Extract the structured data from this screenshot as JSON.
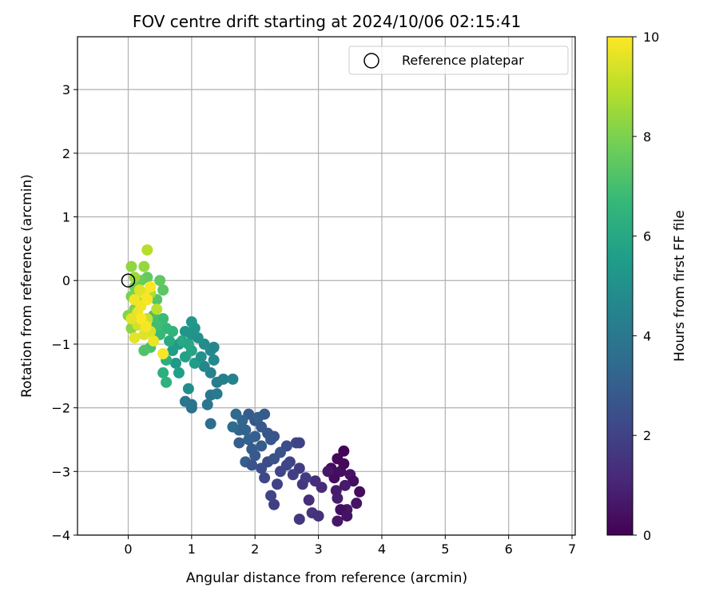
{
  "chart_data": {
    "type": "scatter",
    "title": "FOV centre drift starting at 2024/10/06 02:15:41",
    "xlabel": "Angular distance from reference (arcmin)",
    "ylabel": "Rotation from reference (arcmin)",
    "xlim": [
      -0.8,
      7.05
    ],
    "ylim": [
      -4.0,
      3.83
    ],
    "xticks": [
      "0",
      "1",
      "2",
      "3",
      "4",
      "5",
      "6",
      "7"
    ],
    "yticks": [
      "−4",
      "−3",
      "−2",
      "−1",
      "0",
      "1",
      "2",
      "3"
    ],
    "grid": true,
    "legend": {
      "position": "top-right",
      "entries": [
        "Reference platepar"
      ]
    },
    "reference_point": {
      "x": 0.0,
      "y": 0.0
    },
    "colorbar": {
      "label": "Hours from first FF file",
      "range": [
        0,
        10
      ],
      "ticks": [
        "0",
        "2",
        "4",
        "6",
        "8",
        "10"
      ],
      "colormap": "viridis"
    },
    "points": [
      {
        "x": 3.4,
        "y": -2.68,
        "t": 0.1
      },
      {
        "x": 3.3,
        "y": -2.8,
        "t": 0.2
      },
      {
        "x": 3.2,
        "y": -2.95,
        "t": 0.3
      },
      {
        "x": 3.25,
        "y": -3.1,
        "t": 0.3
      },
      {
        "x": 3.35,
        "y": -3.0,
        "t": 0.4
      },
      {
        "x": 3.4,
        "y": -2.88,
        "t": 0.2
      },
      {
        "x": 3.5,
        "y": -3.05,
        "t": 0.5
      },
      {
        "x": 3.55,
        "y": -3.15,
        "t": 0.4
      },
      {
        "x": 3.65,
        "y": -3.32,
        "t": 0.3
      },
      {
        "x": 3.6,
        "y": -3.5,
        "t": 0.5
      },
      {
        "x": 3.45,
        "y": -3.6,
        "t": 0.6
      },
      {
        "x": 3.35,
        "y": -3.6,
        "t": 0.4
      },
      {
        "x": 3.3,
        "y": -3.78,
        "t": 0.6
      },
      {
        "x": 3.45,
        "y": -3.7,
        "t": 0.5
      },
      {
        "x": 3.28,
        "y": -3.3,
        "t": 0.7
      },
      {
        "x": 3.3,
        "y": -3.42,
        "t": 0.8
      },
      {
        "x": 3.15,
        "y": -3.0,
        "t": 0.6
      },
      {
        "x": 3.42,
        "y": -3.22,
        "t": 0.7
      },
      {
        "x": 3.05,
        "y": -3.25,
        "t": 1.2
      },
      {
        "x": 2.95,
        "y": -3.15,
        "t": 1.3
      },
      {
        "x": 2.85,
        "y": -3.45,
        "t": 1.3
      },
      {
        "x": 2.9,
        "y": -3.65,
        "t": 1.5
      },
      {
        "x": 3.0,
        "y": -3.7,
        "t": 1.4
      },
      {
        "x": 2.7,
        "y": -3.75,
        "t": 1.6
      },
      {
        "x": 2.75,
        "y": -3.2,
        "t": 1.7
      },
      {
        "x": 2.8,
        "y": -3.1,
        "t": 1.8
      },
      {
        "x": 2.6,
        "y": -3.05,
        "t": 1.9
      },
      {
        "x": 2.7,
        "y": -2.95,
        "t": 1.8
      },
      {
        "x": 2.55,
        "y": -2.85,
        "t": 2.0
      },
      {
        "x": 2.65,
        "y": -2.55,
        "t": 2.1
      },
      {
        "x": 2.7,
        "y": -2.55,
        "t": 2.0
      },
      {
        "x": 2.5,
        "y": -2.9,
        "t": 2.2
      },
      {
        "x": 2.4,
        "y": -3.0,
        "t": 2.1
      },
      {
        "x": 2.35,
        "y": -3.2,
        "t": 2.0
      },
      {
        "x": 2.3,
        "y": -3.52,
        "t": 1.9
      },
      {
        "x": 2.25,
        "y": -3.38,
        "t": 2.1
      },
      {
        "x": 2.15,
        "y": -3.1,
        "t": 2.2
      },
      {
        "x": 2.1,
        "y": -2.95,
        "t": 2.4
      },
      {
        "x": 2.2,
        "y": -2.85,
        "t": 2.3
      },
      {
        "x": 2.3,
        "y": -2.8,
        "t": 2.5
      },
      {
        "x": 2.4,
        "y": -2.7,
        "t": 2.6
      },
      {
        "x": 2.5,
        "y": -2.6,
        "t": 2.4
      },
      {
        "x": 2.3,
        "y": -2.45,
        "t": 2.6
      },
      {
        "x": 2.2,
        "y": -2.4,
        "t": 2.7
      },
      {
        "x": 2.1,
        "y": -2.3,
        "t": 2.8
      },
      {
        "x": 2.0,
        "y": -2.2,
        "t": 2.7
      },
      {
        "x": 1.9,
        "y": -2.1,
        "t": 2.9
      },
      {
        "x": 2.05,
        "y": -2.15,
        "t": 3.0
      },
      {
        "x": 2.15,
        "y": -2.1,
        "t": 2.9
      },
      {
        "x": 2.0,
        "y": -2.45,
        "t": 3.0
      },
      {
        "x": 1.9,
        "y": -2.5,
        "t": 3.1
      },
      {
        "x": 1.85,
        "y": -2.35,
        "t": 3.2
      },
      {
        "x": 1.75,
        "y": -2.55,
        "t": 3.0
      },
      {
        "x": 1.8,
        "y": -2.2,
        "t": 3.3
      },
      {
        "x": 1.7,
        "y": -2.1,
        "t": 3.4
      },
      {
        "x": 1.75,
        "y": -2.35,
        "t": 3.2
      },
      {
        "x": 1.65,
        "y": -2.3,
        "t": 3.5
      },
      {
        "x": 1.95,
        "y": -2.65,
        "t": 2.9
      },
      {
        "x": 1.85,
        "y": -2.85,
        "t": 3.0
      },
      {
        "x": 2.0,
        "y": -2.75,
        "t": 2.8
      },
      {
        "x": 1.95,
        "y": -2.9,
        "t": 2.6
      },
      {
        "x": 2.1,
        "y": -2.6,
        "t": 2.9
      },
      {
        "x": 2.25,
        "y": -2.5,
        "t": 2.7
      },
      {
        "x": 1.3,
        "y": -2.25,
        "t": 3.6
      },
      {
        "x": 1.0,
        "y": -2.0,
        "t": 3.7
      },
      {
        "x": 1.0,
        "y": -1.95,
        "t": 3.8
      },
      {
        "x": 0.9,
        "y": -1.9,
        "t": 3.9
      },
      {
        "x": 1.25,
        "y": -1.95,
        "t": 3.9
      },
      {
        "x": 1.3,
        "y": -1.8,
        "t": 4.0
      },
      {
        "x": 1.4,
        "y": -1.78,
        "t": 4.1
      },
      {
        "x": 1.4,
        "y": -1.6,
        "t": 4.2
      },
      {
        "x": 1.5,
        "y": -1.55,
        "t": 4.3
      },
      {
        "x": 1.65,
        "y": -1.55,
        "t": 4.4
      },
      {
        "x": 1.3,
        "y": -1.45,
        "t": 4.5
      },
      {
        "x": 1.2,
        "y": -1.35,
        "t": 4.6
      },
      {
        "x": 1.35,
        "y": -1.25,
        "t": 4.7
      },
      {
        "x": 1.3,
        "y": -1.1,
        "t": 4.8
      },
      {
        "x": 1.35,
        "y": -1.05,
        "t": 4.6
      },
      {
        "x": 1.2,
        "y": -1.0,
        "t": 4.9
      },
      {
        "x": 1.1,
        "y": -0.9,
        "t": 5.0
      },
      {
        "x": 1.0,
        "y": -0.85,
        "t": 5.1
      },
      {
        "x": 1.05,
        "y": -0.75,
        "t": 5.2
      },
      {
        "x": 1.0,
        "y": -0.65,
        "t": 5.3
      },
      {
        "x": 0.9,
        "y": -0.8,
        "t": 5.2
      },
      {
        "x": 0.8,
        "y": -1.0,
        "t": 5.4
      },
      {
        "x": 0.7,
        "y": -1.1,
        "t": 5.5
      },
      {
        "x": 0.75,
        "y": -1.3,
        "t": 5.3
      },
      {
        "x": 0.8,
        "y": -1.45,
        "t": 5.6
      },
      {
        "x": 0.95,
        "y": -1.7,
        "t": 4.9
      },
      {
        "x": 0.9,
        "y": -1.2,
        "t": 5.7
      },
      {
        "x": 1.05,
        "y": -1.3,
        "t": 5.5
      },
      {
        "x": 1.15,
        "y": -1.2,
        "t": 5.0
      },
      {
        "x": 1.0,
        "y": -1.1,
        "t": 5.8
      },
      {
        "x": 0.85,
        "y": -0.95,
        "t": 6.0
      },
      {
        "x": 0.95,
        "y": -1.0,
        "t": 5.9
      },
      {
        "x": 0.65,
        "y": -0.95,
        "t": 6.1
      },
      {
        "x": 0.6,
        "y": -1.25,
        "t": 6.2
      },
      {
        "x": 0.55,
        "y": -1.45,
        "t": 6.3
      },
      {
        "x": 0.6,
        "y": -1.6,
        "t": 6.4
      },
      {
        "x": 0.7,
        "y": -0.8,
        "t": 6.5
      },
      {
        "x": 0.6,
        "y": -0.75,
        "t": 6.6
      },
      {
        "x": 0.5,
        "y": -0.85,
        "t": 6.7
      },
      {
        "x": 0.55,
        "y": -0.6,
        "t": 6.8
      },
      {
        "x": 0.45,
        "y": -0.7,
        "t": 6.9
      },
      {
        "x": 0.4,
        "y": -0.55,
        "t": 7.0
      },
      {
        "x": 0.35,
        "y": -1.05,
        "t": 7.1
      },
      {
        "x": 0.25,
        "y": -1.1,
        "t": 7.2
      },
      {
        "x": 0.45,
        "y": -0.3,
        "t": 7.3
      },
      {
        "x": 0.55,
        "y": -0.15,
        "t": 7.4
      },
      {
        "x": 0.5,
        "y": 0.0,
        "t": 7.5
      },
      {
        "x": 0.3,
        "y": 0.05,
        "t": 7.6
      },
      {
        "x": 0.2,
        "y": 0.0,
        "t": 7.7
      },
      {
        "x": 0.1,
        "y": -0.1,
        "t": 7.8
      },
      {
        "x": 0.05,
        "y": -0.25,
        "t": 7.9
      },
      {
        "x": 0.1,
        "y": -0.45,
        "t": 8.0
      },
      {
        "x": 0.0,
        "y": -0.55,
        "t": 8.1
      },
      {
        "x": 0.05,
        "y": -0.75,
        "t": 8.2
      },
      {
        "x": 0.05,
        "y": 0.22,
        "t": 8.3
      },
      {
        "x": 0.25,
        "y": 0.22,
        "t": 8.4
      },
      {
        "x": 0.3,
        "y": 0.48,
        "t": 8.9
      },
      {
        "x": 0.1,
        "y": 0.05,
        "t": 8.5
      },
      {
        "x": 0.2,
        "y": -0.3,
        "t": 8.6
      },
      {
        "x": 0.35,
        "y": -0.2,
        "t": 8.8
      },
      {
        "x": 0.45,
        "y": -0.45,
        "t": 9.0
      },
      {
        "x": 0.3,
        "y": -0.6,
        "t": 9.2
      },
      {
        "x": 0.15,
        "y": -0.7,
        "t": 9.3
      },
      {
        "x": 0.35,
        "y": -0.8,
        "t": 9.4
      },
      {
        "x": 0.25,
        "y": -0.85,
        "t": 9.5
      },
      {
        "x": 0.1,
        "y": -0.9,
        "t": 9.6
      },
      {
        "x": 0.15,
        "y": -0.5,
        "t": 9.7
      },
      {
        "x": 0.2,
        "y": -0.4,
        "t": 9.8
      },
      {
        "x": 0.3,
        "y": -0.3,
        "t": 9.9
      },
      {
        "x": 0.35,
        "y": -0.1,
        "t": 10.0
      },
      {
        "x": 0.25,
        "y": -0.2,
        "t": 9.9
      },
      {
        "x": 0.1,
        "y": -0.3,
        "t": 9.8
      },
      {
        "x": 0.4,
        "y": -0.95,
        "t": 9.7
      },
      {
        "x": 0.55,
        "y": -1.15,
        "t": 9.9
      },
      {
        "x": 0.2,
        "y": -0.6,
        "t": 10.0
      },
      {
        "x": 0.05,
        "y": -0.6,
        "t": 9.6
      },
      {
        "x": 0.28,
        "y": -0.72,
        "t": 9.9
      },
      {
        "x": 0.18,
        "y": -0.15,
        "t": 9.5
      }
    ]
  }
}
